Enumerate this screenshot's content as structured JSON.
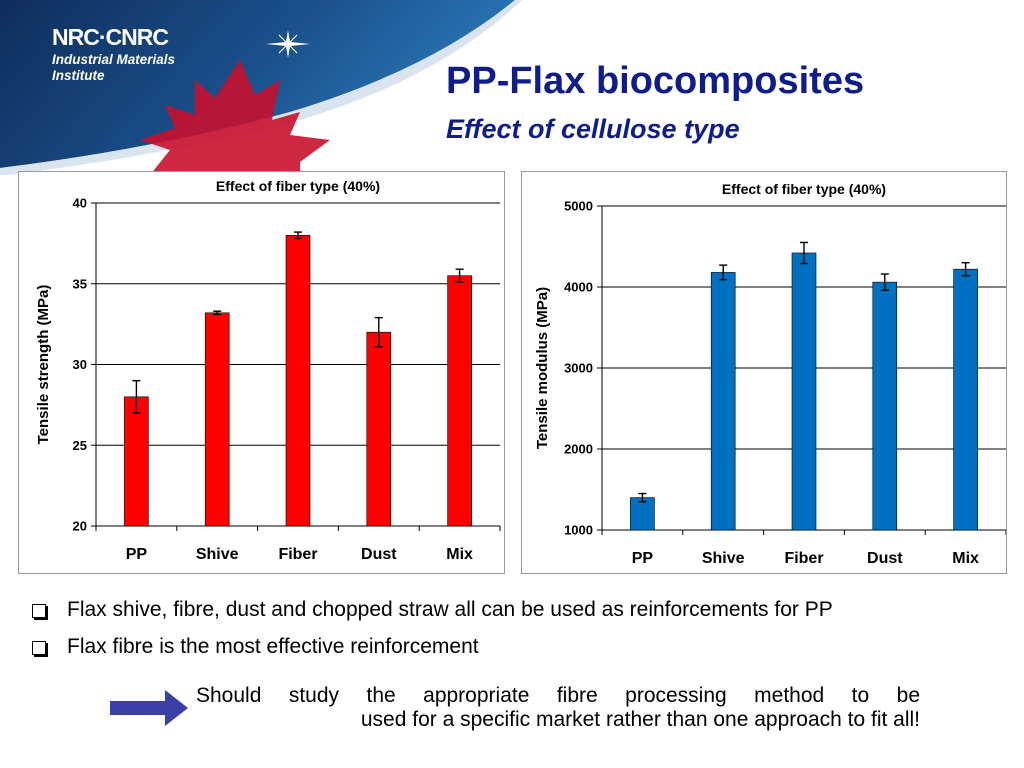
{
  "colors": {
    "banner_dark": "#133768",
    "banner_mid": "#1f5c9a",
    "maple_red": "#c8102e",
    "title_blue": "#0f1d8c",
    "arrow_blue": "#3b3fa8",
    "bar_red": "#ff0000",
    "bar_blue": "#0070c0"
  },
  "header": {
    "logo_text": "NRC·CNRC",
    "org_line1": "Industrial Materials",
    "org_line2": "Institute",
    "title": "PP-Flax biocomposites",
    "subtitle": "Effect of cellulose type"
  },
  "bullets": [
    {
      "text": "Flax shive, fibre, dust and chopped straw all can be used as reinforcements for PP"
    },
    {
      "text": "Flax fibre is the most effective reinforcement"
    }
  ],
  "note": {
    "line1": "Should study the appropriate fibre processing method to be",
    "line2": "used for a specific market rather than one approach to fit all!"
  },
  "chart_data": [
    {
      "type": "bar",
      "title": "Effect of fiber type (40%)",
      "ylabel": "Tensile strength (MPa)",
      "xlabel": "",
      "categories": [
        "PP",
        "Shive",
        "Fiber",
        "Dust",
        "Mix"
      ],
      "values": [
        28,
        33.2,
        38,
        32,
        35.5
      ],
      "errors": [
        1,
        0.1,
        0.2,
        0.9,
        0.4
      ],
      "ylim": [
        20,
        40
      ],
      "yticks": [
        20,
        25,
        30,
        35,
        40
      ],
      "grid": true,
      "color": "#ff0000"
    },
    {
      "type": "bar",
      "title": "Effect of fiber type (40%)",
      "ylabel": "Tensile modulus (MPa)",
      "xlabel": "",
      "categories": [
        "PP",
        "Shive",
        "Fiber",
        "Dust",
        "Mix"
      ],
      "values": [
        1400,
        4180,
        4420,
        4060,
        4220
      ],
      "errors": [
        50,
        90,
        130,
        100,
        80
      ],
      "ylim": [
        1000,
        5000
      ],
      "yticks": [
        1000,
        2000,
        3000,
        4000,
        5000
      ],
      "grid": true,
      "color": "#0070c0"
    }
  ]
}
